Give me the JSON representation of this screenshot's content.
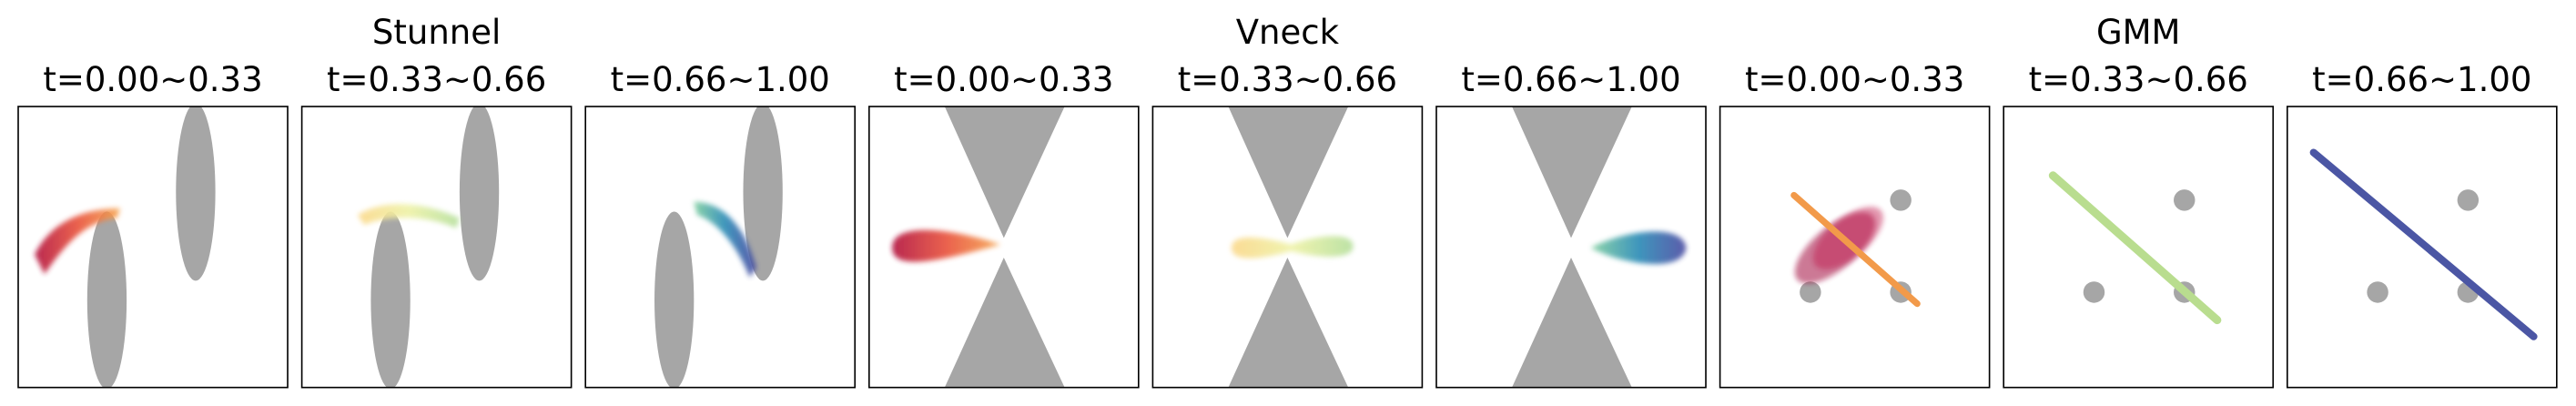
{
  "groups": [
    {
      "title": "Stunnel",
      "panels": [
        "t=0.00~0.33",
        "t=0.33~0.66",
        "t=0.66~1.00"
      ]
    },
    {
      "title": "Vneck",
      "panels": [
        "t=0.00~0.33",
        "t=0.33~0.66",
        "t=0.66~1.00"
      ]
    },
    {
      "title": "GMM",
      "panels": [
        "t=0.00~0.33",
        "t=0.33~0.66",
        "t=0.66~1.00"
      ]
    }
  ]
}
